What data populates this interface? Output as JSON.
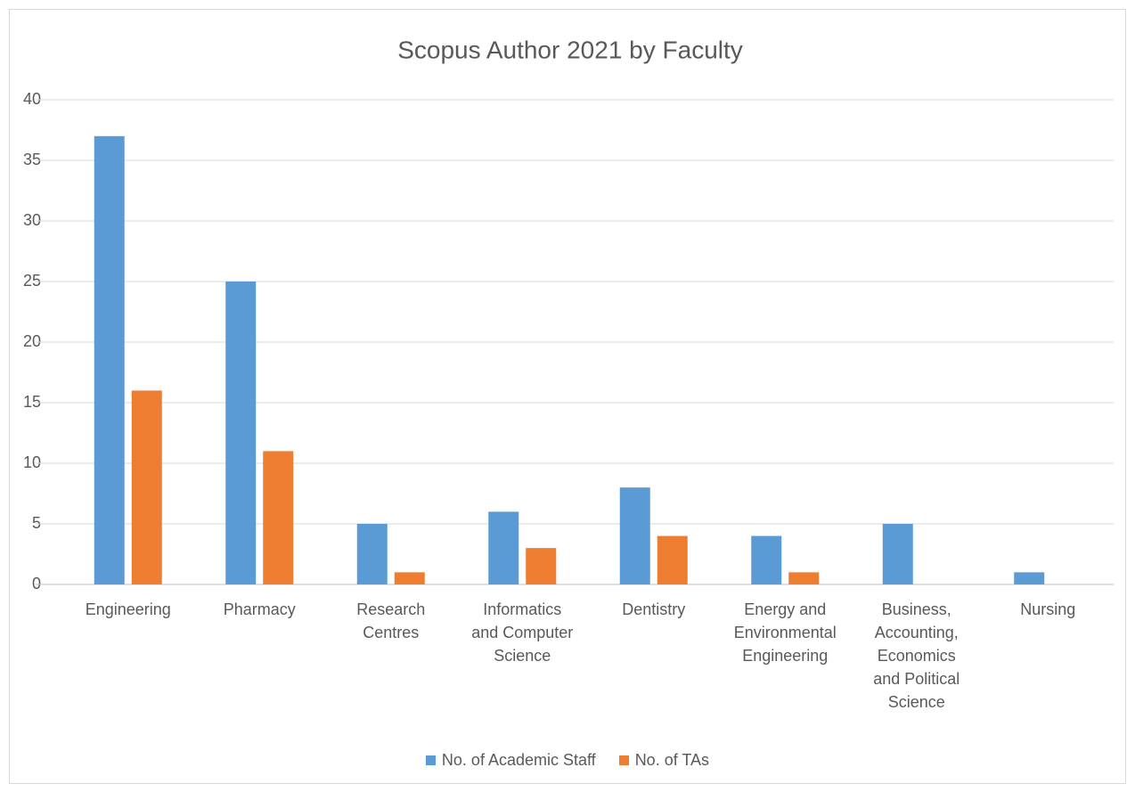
{
  "chart_data": {
    "type": "bar",
    "title": "Scopus Author 2021 by Faculty",
    "categories": [
      "Engineering",
      "Pharmacy",
      "Research Centres",
      "Informatics and Computer Science",
      "Dentistry",
      "Energy and Environmental Engineering",
      "Business, Accounting, Economics and Political Science",
      "Nursing"
    ],
    "series": [
      {
        "name": "No. of Academic Staff",
        "color": "#5b9bd5",
        "values": [
          37,
          25,
          5,
          6,
          8,
          4,
          5,
          1
        ]
      },
      {
        "name": "No. of TAs",
        "color": "#ed7d31",
        "values": [
          16,
          11,
          1,
          3,
          4,
          1,
          0,
          0
        ]
      }
    ],
    "ylim": [
      0,
      40
    ],
    "yticks": [
      0,
      5,
      10,
      15,
      20,
      25,
      30,
      35,
      40
    ],
    "grid": true,
    "legend": "bottom"
  }
}
